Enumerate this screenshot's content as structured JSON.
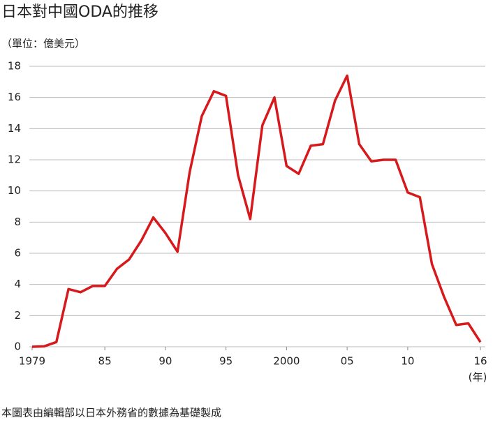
{
  "chart_data": {
    "type": "line",
    "title": "日本對中國ODA的推移",
    "y_unit": "（單位：億美元）",
    "x_unit": "(年)",
    "source": "本圖表由編輯部以日本外務省的數據為基礎製成",
    "x": [
      1979,
      1980,
      1981,
      1982,
      1983,
      1984,
      1985,
      1986,
      1987,
      1988,
      1989,
      1990,
      1991,
      1992,
      1993,
      1994,
      1995,
      1996,
      1997,
      1998,
      1999,
      2000,
      2001,
      2002,
      2003,
      2004,
      2005,
      2006,
      2007,
      2008,
      2009,
      2010,
      2011,
      2012,
      2013,
      2014,
      2015,
      2016
    ],
    "series": [
      {
        "name": "ODA",
        "color": "#d7191c",
        "values": [
          0.0,
          0.03,
          0.3,
          3.7,
          3.5,
          3.9,
          3.9,
          5.0,
          5.6,
          6.8,
          8.3,
          7.3,
          6.1,
          11.2,
          14.8,
          16.4,
          16.1,
          11.0,
          8.2,
          14.2,
          16.0,
          11.6,
          11.1,
          12.9,
          13.0,
          15.8,
          17.4,
          13.0,
          11.9,
          12.0,
          12.0,
          9.9,
          9.6,
          5.3,
          3.2,
          1.4,
          1.5,
          0.3
        ]
      }
    ],
    "xlim": [
      1979,
      2016
    ],
    "xticks": [
      1979,
      {
        "value": 1985,
        "label": "85"
      },
      {
        "value": 1990,
        "label": "90"
      },
      {
        "value": 1995,
        "label": "95"
      },
      2000,
      {
        "value": 2005,
        "label": "05"
      },
      {
        "value": 2010,
        "label": "10"
      },
      {
        "value": 2016,
        "label": "16"
      }
    ],
    "ylim": [
      0,
      18
    ],
    "yticks": [
      0,
      2,
      4,
      6,
      8,
      10,
      12,
      14,
      16,
      18
    ],
    "grid": true
  }
}
